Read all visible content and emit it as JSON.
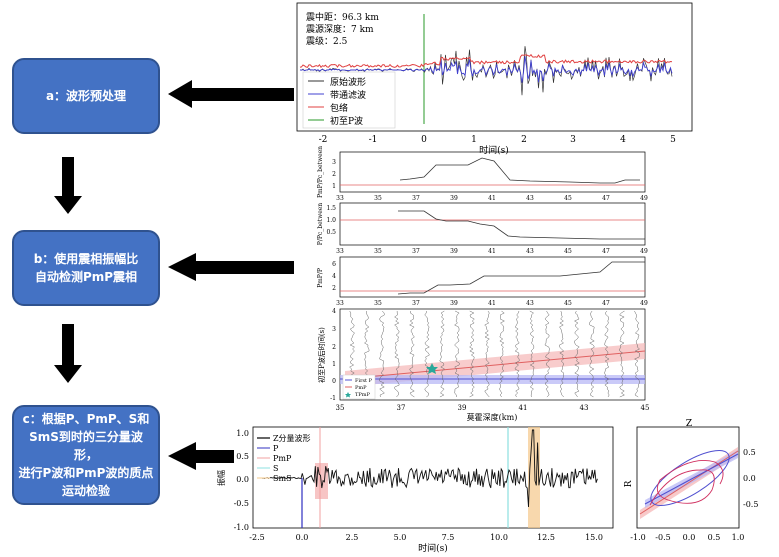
{
  "steps": {
    "a": "a：波形预处理",
    "b": "b：使用震相振幅比\n自动检测PmP震相",
    "c": "c：根据P、PmP、S和\nSmS到时的三分量波形，\n进行P波和PmP波的质点\n运动检验"
  },
  "top_panel": {
    "info": [
      "震中距：96.3 km",
      "震源深度：7 km",
      "震级：2.5"
    ],
    "legend": [
      "原始波形",
      "带通滤波",
      "包络",
      "初至P波"
    ],
    "xticks": [
      "-2",
      "-1",
      "0",
      "1",
      "2",
      "3",
      "4",
      "5"
    ],
    "xlabel": "时间(s)"
  },
  "middle_panels": {
    "ylabels": [
      "PmP/Pc_between",
      "P/Pc_between",
      "PmP/P"
    ],
    "xticks": [
      "33",
      "35",
      "37",
      "39",
      "41",
      "43",
      "45",
      "47",
      "49"
    ],
    "p1_yticks": [
      "3",
      "2",
      "1"
    ],
    "p2_yticks": [
      "1.5",
      "1.0",
      "0.5"
    ],
    "p3_yticks": [
      "6",
      "4",
      "2"
    ],
    "section_ylabel": "初至P波后时间(s)",
    "section_yticks": [
      "4",
      "3",
      "2",
      "1",
      "0",
      "-1"
    ],
    "section_xticks": [
      "35",
      "37",
      "39",
      "41",
      "43",
      "45"
    ],
    "section_xlabel": "莫霍深度(km)",
    "section_legend": [
      "First P",
      "PmP",
      "TPmP"
    ]
  },
  "bottom_panel": {
    "legend": [
      "Z分量波形",
      "P",
      "PmP",
      "S",
      "SmS"
    ],
    "yticks": [
      "1.0",
      "0.5",
      "0.0",
      "-0.5",
      "-1.0"
    ],
    "xticks": [
      "-2.5",
      "0.0",
      "2.5",
      "5.0",
      "7.5",
      "10.0",
      "12.5",
      "15.0"
    ],
    "ylabel": "振幅",
    "xlabel": "时间(s)"
  },
  "particle_panel": {
    "top_label": "Z",
    "ylabel": "R",
    "yticks": [
      "0.5",
      "0.0",
      "-0.5"
    ],
    "xticks": [
      "-1.0",
      "-0.5",
      "0.0",
      "0.5",
      "1.0"
    ]
  },
  "colors": {
    "box": "#4472c4",
    "raw": "#333333",
    "band": "#4040d0",
    "env": "#e04040",
    "firstP": "#2a9a2a",
    "pmp": "#f0a0a0",
    "s": "#8de0e0",
    "sms": "#f5c88a"
  }
}
